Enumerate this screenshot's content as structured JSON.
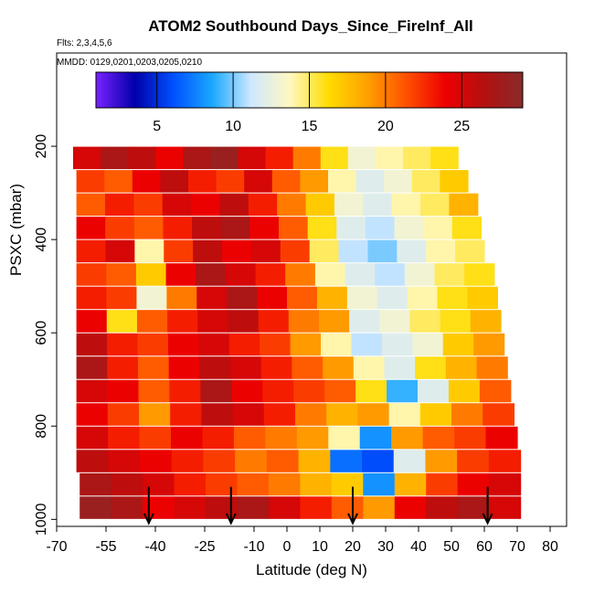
{
  "title": "ATOM2 Southbound Days_Since_FireInf_All",
  "flights_label": "Flts: 2,3,4,5,6",
  "mmdd_label": "MMDD: 0129,0201,0203,0205,0210",
  "chart_data": {
    "type": "heatmap",
    "title": "ATOM2 Southbound Days_Since_FireInf_All",
    "xlabel": "Latitude (deg N)",
    "ylabel": "PSXC (mbar)",
    "xlim": [
      -70,
      85
    ],
    "ylim": [
      1015,
      0
    ],
    "xticks": [
      -70,
      -55,
      -40,
      -25,
      -10,
      0,
      10,
      20,
      30,
      40,
      50,
      60,
      70,
      80
    ],
    "xtick_labels": [
      "-70",
      "-55",
      "-40",
      "-25",
      "-10",
      "0",
      "10",
      "20",
      "30",
      "40",
      "50",
      "60",
      "70",
      "80"
    ],
    "yticks": [
      200,
      400,
      600,
      800,
      1000
    ],
    "ytick_labels": [
      "200",
      "400",
      "600",
      "800",
      "1000"
    ],
    "colorbar": {
      "range": [
        1,
        29
      ],
      "ticks": [
        5,
        10,
        15,
        20,
        25
      ],
      "tick_labels": [
        "5",
        "10",
        "15",
        "20",
        "25"
      ],
      "colors": [
        "#7a22ff",
        "#0000aa",
        "#0050ff",
        "#1aa8ff",
        "#cfe8ff",
        "#fff8c0",
        "#ffdc00",
        "#ffa000",
        "#ff5000",
        "#ee0000",
        "#b41010",
        "#8a2a2a"
      ]
    },
    "pressure_levels": [
      225,
      275,
      325,
      375,
      425,
      475,
      525,
      575,
      625,
      675,
      725,
      775,
      825,
      875,
      925,
      975
    ],
    "lat_extent": [
      [
        -65,
        52
      ],
      [
        -64,
        55
      ],
      [
        -64,
        58
      ],
      [
        -64,
        59
      ],
      [
        -64,
        60
      ],
      [
        -64,
        63
      ],
      [
        -64,
        64
      ],
      [
        -64,
        65
      ],
      [
        -64,
        66
      ],
      [
        -64,
        67
      ],
      [
        -64,
        68
      ],
      [
        -64,
        69
      ],
      [
        -64,
        70
      ],
      [
        -64,
        71
      ],
      [
        -63,
        71
      ],
      [
        -63,
        71
      ]
    ],
    "rows": [
      [
        25,
        27,
        26,
        24,
        27,
        28,
        25,
        23,
        20,
        16,
        13,
        14,
        15,
        16
      ],
      [
        22,
        21,
        24,
        26,
        23,
        22,
        25,
        21,
        19,
        14,
        12,
        13,
        15,
        17
      ],
      [
        21,
        23,
        22,
        25,
        24,
        26,
        23,
        20,
        17,
        13,
        12,
        14,
        15,
        18
      ],
      [
        24,
        22,
        21,
        23,
        26,
        27,
        24,
        21,
        16,
        12,
        11,
        13,
        14,
        16
      ],
      [
        23,
        25,
        14,
        22,
        26,
        24,
        25,
        22,
        15,
        11,
        10,
        12,
        14,
        15
      ],
      [
        22,
        21,
        17,
        24,
        27,
        25,
        23,
        20,
        14,
        12,
        11,
        13,
        15,
        16
      ],
      [
        23,
        22,
        13,
        20,
        25,
        27,
        24,
        21,
        18,
        13,
        12,
        14,
        16,
        17
      ],
      [
        24,
        16,
        21,
        23,
        25,
        26,
        23,
        20,
        19,
        12,
        13,
        15,
        16,
        18
      ],
      [
        26,
        23,
        22,
        24,
        25,
        23,
        22,
        19,
        14,
        11,
        12,
        13,
        17,
        19
      ],
      [
        27,
        23,
        21,
        24,
        26,
        25,
        23,
        21,
        19,
        14,
        12,
        16,
        18,
        20
      ],
      [
        25,
        24,
        21,
        23,
        27,
        24,
        23,
        22,
        21,
        16,
        9,
        12,
        17,
        21
      ],
      [
        24,
        22,
        19,
        23,
        26,
        25,
        23,
        20,
        18,
        19,
        14,
        17,
        20,
        22
      ],
      [
        25,
        23,
        22,
        24,
        23,
        21,
        20,
        19,
        14,
        8,
        19,
        21,
        22,
        24
      ],
      [
        26,
        25,
        24,
        23,
        22,
        20,
        21,
        18,
        7,
        6,
        12,
        19,
        22,
        23
      ],
      [
        27,
        26,
        25,
        23,
        22,
        21,
        20,
        18,
        17,
        8,
        18,
        22,
        24,
        25
      ],
      [
        28,
        27,
        24,
        25,
        26,
        27,
        25,
        23,
        21,
        19,
        24,
        26,
        27,
        25
      ]
    ],
    "arrows_lat": [
      -42,
      -17,
      20,
      61
    ]
  }
}
